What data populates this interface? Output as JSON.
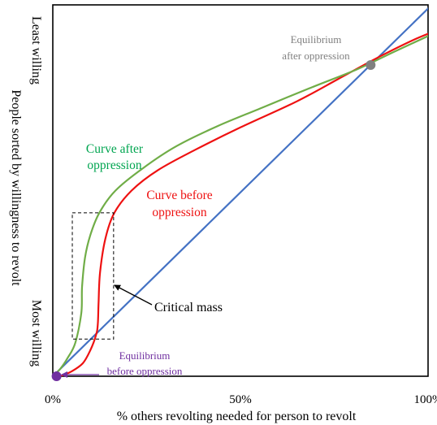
{
  "chart_data": {
    "type": "line",
    "xlabel": "% others revolting needed for person to revolt",
    "ylabel": "People sorted by willingness to revolt",
    "y_top_label": "Least willing",
    "y_bottom_label": "Most willing",
    "xlim": [
      0,
      100
    ],
    "ylim": [
      0,
      100
    ],
    "x_ticks": [
      {
        "value": 0,
        "label": "0%"
      },
      {
        "value": 50,
        "label": "50%"
      },
      {
        "value": 100,
        "label": "100%"
      }
    ],
    "grid": false,
    "legend": "none",
    "series": [
      {
        "name": "Curve before oppression",
        "color": "#ee1111",
        "points": [
          [
            2,
            0
          ],
          [
            5,
            1.3
          ],
          [
            8,
            3.5
          ],
          [
            10,
            7
          ],
          [
            11.5,
            11
          ],
          [
            12,
            14
          ],
          [
            12.2,
            20
          ],
          [
            12.6,
            28
          ],
          [
            14,
            37
          ],
          [
            16.4,
            44
          ],
          [
            21,
            50
          ],
          [
            28,
            55.5
          ],
          [
            38,
            61
          ],
          [
            50,
            67
          ],
          [
            65,
            74
          ],
          [
            76,
            80
          ],
          [
            86,
            85.5
          ],
          [
            96,
            90.5
          ],
          [
            102,
            93
          ]
        ]
      },
      {
        "name": "Curve after oppression",
        "color": "#70ad47",
        "points": [
          [
            0,
            0
          ],
          [
            2,
            2
          ],
          [
            4,
            5
          ],
          [
            6,
            9
          ],
          [
            7.6,
            17
          ],
          [
            7.8,
            24
          ],
          [
            8.6,
            32
          ],
          [
            10,
            38
          ],
          [
            12.4,
            44
          ],
          [
            16.7,
            50
          ],
          [
            24,
            56
          ],
          [
            33,
            62
          ],
          [
            44,
            67.4
          ],
          [
            56,
            72.4
          ],
          [
            69,
            77.8
          ],
          [
            81,
            82.6
          ],
          [
            91,
            87.4
          ],
          [
            100,
            91.6
          ],
          [
            102,
            92.6
          ]
        ]
      },
      {
        "name": "45-degree line",
        "color": "#4472c4",
        "points": [
          [
            0,
            0
          ],
          [
            102,
            101
          ]
        ]
      }
    ],
    "equilibria": [
      {
        "label": "Equilibrium before oppression",
        "x": 1,
        "y": 0,
        "color": "#7030a0"
      },
      {
        "label": "Equilibrium after oppression",
        "x": 84.7,
        "y": 83.8,
        "color": "#808080"
      }
    ],
    "annotations": [
      {
        "text": "Curve after oppression",
        "color": "#00a550"
      },
      {
        "text": "Curve before oppression",
        "color": "#ee1111"
      },
      {
        "text": "Critical mass",
        "color": "#000000",
        "box": {
          "x": [
            5.2,
            16.2
          ],
          "y": [
            10,
            44
          ]
        }
      },
      {
        "text": "Equilibrium before oppression",
        "color": "#7030a0"
      },
      {
        "text": "Equilibrium after oppression",
        "color": "#808080"
      }
    ]
  }
}
